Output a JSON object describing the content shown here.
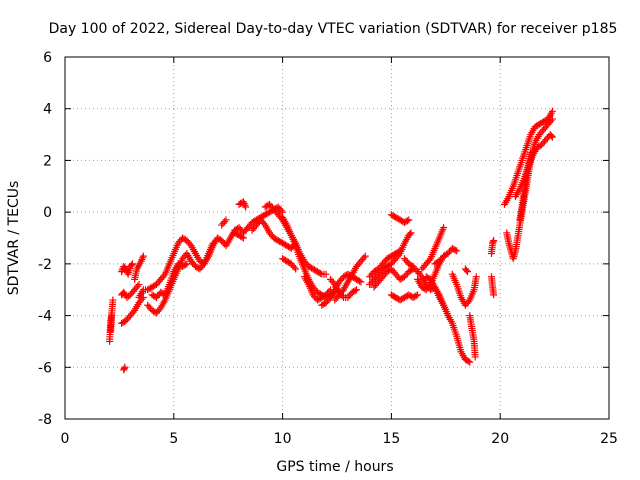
{
  "chart_data": {
    "type": "scatter",
    "title": "Day 100 of 2022, Sidereal Day-to-day VTEC variation (SDTVAR) for receiver p185",
    "xlabel": "GPS time / hours",
    "ylabel": "SDTVAR / TECUs",
    "xlim": [
      0,
      25
    ],
    "ylim": [
      -8,
      6
    ],
    "xticks": [
      "0",
      "5",
      "10",
      "15",
      "20",
      "25"
    ],
    "xtick_values": [
      0,
      5,
      10,
      15,
      20,
      25
    ],
    "yticks": [
      "-8",
      "-6",
      "-4",
      "-2",
      "0",
      "2",
      "4",
      "6"
    ],
    "ytick_values": [
      -8,
      -6,
      -4,
      -2,
      0,
      2,
      4,
      6
    ],
    "grid": true,
    "marker": "+",
    "series_color": "#ff0000",
    "segments": [
      [
        [
          2.05,
          -5.0
        ],
        [
          2.1,
          -4.2
        ],
        [
          2.15,
          -3.9
        ],
        [
          2.2,
          -3.4
        ]
      ],
      [
        [
          2.1,
          -4.6
        ],
        [
          2.15,
          -4.0
        ]
      ],
      [
        [
          2.6,
          -2.3
        ],
        [
          2.7,
          -2.1
        ],
        [
          2.8,
          -2.2
        ],
        [
          2.9,
          -2.4
        ],
        [
          3.0,
          -2.1
        ],
        [
          3.1,
          -2.0
        ]
      ],
      [
        [
          2.6,
          -3.2
        ],
        [
          2.7,
          -3.1
        ],
        [
          2.85,
          -3.3
        ],
        [
          3.0,
          -3.2
        ],
        [
          3.2,
          -3.0
        ],
        [
          3.4,
          -2.8
        ]
      ],
      [
        [
          2.6,
          -4.3
        ],
        [
          2.8,
          -4.2
        ],
        [
          3.0,
          -4.0
        ],
        [
          3.2,
          -3.8
        ],
        [
          3.4,
          -3.5
        ],
        [
          3.6,
          -3.3
        ]
      ],
      [
        [
          2.7,
          -6.1
        ],
        [
          2.75,
          -6.0
        ]
      ],
      [
        [
          3.2,
          -2.6
        ],
        [
          3.3,
          -2.2
        ],
        [
          3.5,
          -1.9
        ],
        [
          3.6,
          -1.7
        ]
      ],
      [
        [
          3.4,
          -3.3
        ],
        [
          3.6,
          -3.0
        ],
        [
          3.8,
          -3.0
        ],
        [
          4.0,
          -2.9
        ],
        [
          4.2,
          -2.8
        ],
        [
          4.4,
          -2.6
        ],
        [
          4.6,
          -2.4
        ],
        [
          4.8,
          -2.0
        ],
        [
          5.0,
          -1.6
        ],
        [
          5.2,
          -1.2
        ],
        [
          5.4,
          -1.0
        ],
        [
          5.6,
          -1.1
        ],
        [
          5.8,
          -1.3
        ],
        [
          6.0,
          -1.6
        ],
        [
          6.2,
          -1.9
        ],
        [
          6.4,
          -2.0
        ],
        [
          6.6,
          -1.7
        ],
        [
          6.8,
          -1.3
        ],
        [
          7.0,
          -1.0
        ],
        [
          7.2,
          -1.1
        ],
        [
          7.4,
          -1.3
        ],
        [
          7.6,
          -1.0
        ],
        [
          7.8,
          -0.7
        ],
        [
          8.0,
          -0.6
        ],
        [
          8.2,
          -0.8
        ],
        [
          8.4,
          -0.6
        ],
        [
          8.6,
          -0.4
        ],
        [
          8.8,
          -0.3
        ],
        [
          9.0,
          -0.2
        ],
        [
          9.2,
          -0.1
        ],
        [
          9.4,
          0.0
        ],
        [
          9.6,
          0.1
        ],
        [
          9.8,
          0.2
        ],
        [
          10.0,
          0.0
        ]
      ],
      [
        [
          3.8,
          -3.6
        ],
        [
          4.0,
          -3.8
        ],
        [
          4.2,
          -3.9
        ],
        [
          4.4,
          -3.7
        ],
        [
          4.6,
          -3.4
        ],
        [
          4.8,
          -3.0
        ],
        [
          5.0,
          -2.6
        ],
        [
          5.2,
          -2.2
        ],
        [
          5.4,
          -1.8
        ],
        [
          5.6,
          -1.6
        ],
        [
          5.8,
          -1.9
        ],
        [
          6.0,
          -2.1
        ],
        [
          6.2,
          -2.2
        ],
        [
          6.4,
          -2.0
        ],
        [
          6.6,
          -1.6
        ],
        [
          6.8,
          -1.2
        ]
      ],
      [
        [
          4.0,
          -3.2
        ],
        [
          4.2,
          -3.3
        ],
        [
          4.4,
          -3.1
        ],
        [
          4.6,
          -3.2
        ],
        [
          4.8,
          -2.8
        ],
        [
          5.0,
          -2.3
        ],
        [
          5.2,
          -2.0
        ],
        [
          5.4,
          -2.1
        ],
        [
          5.6,
          -2.0
        ]
      ],
      [
        [
          7.2,
          -0.5
        ],
        [
          7.4,
          -0.3
        ]
      ],
      [
        [
          8.0,
          0.3
        ],
        [
          8.2,
          0.4
        ],
        [
          8.3,
          0.2
        ]
      ],
      [
        [
          7.8,
          -0.8
        ],
        [
          8.0,
          -0.9
        ],
        [
          8.2,
          -1.0
        ]
      ],
      [
        [
          8.6,
          -0.7
        ],
        [
          8.8,
          -0.5
        ],
        [
          9.0,
          -0.3
        ],
        [
          9.2,
          -0.5
        ],
        [
          9.4,
          -0.8
        ],
        [
          9.6,
          -1.0
        ],
        [
          9.8,
          -1.1
        ],
        [
          10.0,
          -1.2
        ],
        [
          10.2,
          -1.3
        ],
        [
          10.4,
          -1.4
        ],
        [
          10.6,
          -1.2
        ]
      ],
      [
        [
          9.2,
          0.2
        ],
        [
          9.4,
          0.3
        ],
        [
          9.6,
          0.1
        ],
        [
          9.8,
          -0.1
        ],
        [
          10.0,
          -0.3
        ],
        [
          10.2,
          -0.6
        ],
        [
          10.4,
          -0.9
        ],
        [
          10.6,
          -1.2
        ],
        [
          10.8,
          -1.6
        ],
        [
          11.0,
          -1.9
        ],
        [
          11.2,
          -2.1
        ],
        [
          11.4,
          -2.2
        ],
        [
          11.6,
          -2.3
        ],
        [
          11.8,
          -2.4
        ],
        [
          12.0,
          -2.4
        ]
      ],
      [
        [
          10.0,
          -0.2
        ],
        [
          10.2,
          -0.5
        ],
        [
          10.4,
          -0.9
        ],
        [
          10.6,
          -1.3
        ],
        [
          10.8,
          -1.8
        ],
        [
          11.0,
          -2.2
        ],
        [
          11.2,
          -2.6
        ],
        [
          11.4,
          -2.9
        ],
        [
          11.6,
          -3.1
        ],
        [
          11.8,
          -3.2
        ],
        [
          12.0,
          -3.3
        ],
        [
          12.2,
          -3.2
        ],
        [
          12.4,
          -3.1
        ]
      ],
      [
        [
          10.0,
          -1.8
        ],
        [
          10.2,
          -1.9
        ],
        [
          10.4,
          -2.0
        ],
        [
          10.6,
          -2.2
        ]
      ],
      [
        [
          11.0,
          -2.5
        ],
        [
          11.2,
          -2.8
        ],
        [
          11.4,
          -3.2
        ],
        [
          11.6,
          -3.4
        ],
        [
          11.8,
          -3.3
        ],
        [
          12.0,
          -3.2
        ],
        [
          12.2,
          -3.0
        ]
      ],
      [
        [
          11.8,
          -3.6
        ],
        [
          12.0,
          -3.5
        ],
        [
          12.2,
          -3.3
        ],
        [
          12.4,
          -3.0
        ],
        [
          12.6,
          -2.7
        ],
        [
          12.8,
          -2.5
        ],
        [
          13.0,
          -2.4
        ],
        [
          13.2,
          -2.5
        ],
        [
          13.4,
          -2.6
        ],
        [
          13.6,
          -2.7
        ]
      ],
      [
        [
          12.4,
          -3.4
        ],
        [
          12.6,
          -3.2
        ],
        [
          12.8,
          -3.0
        ],
        [
          13.0,
          -2.7
        ],
        [
          13.2,
          -2.4
        ],
        [
          13.4,
          -2.1
        ],
        [
          13.6,
          -1.9
        ],
        [
          13.8,
          -1.7
        ]
      ],
      [
        [
          12.2,
          -2.6
        ],
        [
          12.4,
          -2.8
        ],
        [
          12.6,
          -3.1
        ],
        [
          12.8,
          -3.3
        ],
        [
          13.0,
          -3.3
        ],
        [
          13.2,
          -3.1
        ],
        [
          13.4,
          -3.0
        ]
      ],
      [
        [
          14.0,
          -2.5
        ],
        [
          14.2,
          -2.3
        ],
        [
          14.4,
          -2.2
        ],
        [
          14.6,
          -2.0
        ],
        [
          14.8,
          -1.8
        ],
        [
          15.0,
          -1.7
        ],
        [
          15.2,
          -1.6
        ],
        [
          15.4,
          -1.5
        ]
      ],
      [
        [
          14.0,
          -2.8
        ],
        [
          14.2,
          -2.6
        ],
        [
          14.4,
          -2.4
        ],
        [
          14.6,
          -2.2
        ],
        [
          14.8,
          -2.1
        ],
        [
          15.0,
          -2.0
        ],
        [
          15.2,
          -1.8
        ],
        [
          15.4,
          -1.6
        ],
        [
          15.6,
          -1.2
        ],
        [
          15.8,
          -0.9
        ],
        [
          15.9,
          -0.8
        ]
      ],
      [
        [
          14.2,
          -2.9
        ],
        [
          14.4,
          -2.7
        ],
        [
          14.6,
          -2.5
        ],
        [
          14.8,
          -2.3
        ],
        [
          15.0,
          -2.2
        ],
        [
          15.2,
          -2.4
        ],
        [
          15.4,
          -2.6
        ],
        [
          15.6,
          -2.5
        ],
        [
          15.8,
          -2.3
        ],
        [
          16.0,
          -2.2
        ]
      ],
      [
        [
          15.0,
          -0.1
        ],
        [
          15.2,
          -0.2
        ],
        [
          15.4,
          -0.3
        ],
        [
          15.6,
          -0.4
        ],
        [
          15.8,
          -0.3
        ]
      ],
      [
        [
          15.0,
          -3.2
        ],
        [
          15.2,
          -3.3
        ],
        [
          15.4,
          -3.4
        ],
        [
          15.6,
          -3.3
        ],
        [
          15.8,
          -3.2
        ],
        [
          16.0,
          -3.3
        ],
        [
          16.2,
          -3.2
        ]
      ],
      [
        [
          15.6,
          -1.8
        ],
        [
          15.8,
          -2.0
        ],
        [
          16.0,
          -2.1
        ],
        [
          16.2,
          -2.3
        ],
        [
          16.4,
          -2.5
        ],
        [
          16.6,
          -2.8
        ],
        [
          16.8,
          -3.0
        ],
        [
          17.0,
          -2.9
        ],
        [
          17.2,
          -3.2
        ],
        [
          17.4,
          -3.6
        ],
        [
          17.6,
          -4.0
        ]
      ],
      [
        [
          16.2,
          -2.6
        ],
        [
          16.4,
          -2.9
        ],
        [
          16.6,
          -3.0
        ],
        [
          16.8,
          -2.8
        ],
        [
          17.0,
          -2.4
        ],
        [
          17.2,
          -2.0
        ],
        [
          17.4,
          -1.7
        ]
      ],
      [
        [
          16.4,
          -2.2
        ],
        [
          16.6,
          -2.0
        ],
        [
          16.8,
          -1.8
        ],
        [
          17.0,
          -1.4
        ],
        [
          17.2,
          -1.0
        ],
        [
          17.4,
          -0.6
        ]
      ],
      [
        [
          16.6,
          -2.5
        ],
        [
          16.8,
          -2.6
        ],
        [
          17.0,
          -2.9
        ],
        [
          17.2,
          -3.3
        ],
        [
          17.4,
          -3.6
        ],
        [
          17.6,
          -4.0
        ],
        [
          17.8,
          -4.3
        ],
        [
          18.0,
          -4.8
        ],
        [
          18.2,
          -5.4
        ],
        [
          18.4,
          -5.7
        ],
        [
          18.6,
          -5.8
        ]
      ],
      [
        [
          17.0,
          -2.0
        ],
        [
          17.2,
          -1.9
        ],
        [
          17.4,
          -1.7
        ],
        [
          17.6,
          -1.6
        ],
        [
          17.8,
          -1.4
        ],
        [
          18.0,
          -1.5
        ]
      ],
      [
        [
          17.8,
          -2.4
        ],
        [
          18.0,
          -2.8
        ],
        [
          18.2,
          -3.3
        ],
        [
          18.4,
          -3.6
        ],
        [
          18.6,
          -3.4
        ],
        [
          18.8,
          -3.0
        ],
        [
          18.9,
          -2.5
        ]
      ],
      [
        [
          18.6,
          -4.0
        ],
        [
          18.7,
          -4.5
        ],
        [
          18.8,
          -5.0
        ],
        [
          18.85,
          -5.6
        ]
      ],
      [
        [
          18.4,
          -2.2
        ],
        [
          18.5,
          -2.3
        ]
      ],
      [
        [
          19.6,
          -1.6
        ],
        [
          19.65,
          -1.2
        ],
        [
          19.7,
          -1.1
        ]
      ],
      [
        [
          19.6,
          -2.5
        ],
        [
          19.65,
          -2.9
        ],
        [
          19.7,
          -3.2
        ]
      ],
      [
        [
          20.3,
          -0.8
        ],
        [
          20.4,
          -1.2
        ],
        [
          20.5,
          -1.5
        ],
        [
          20.6,
          -1.8
        ],
        [
          20.7,
          -1.5
        ],
        [
          20.8,
          -1.0
        ],
        [
          20.9,
          -0.5
        ],
        [
          21.0,
          0.0
        ],
        [
          21.1,
          0.5
        ],
        [
          21.2,
          1.0
        ],
        [
          21.3,
          1.5
        ],
        [
          21.4,
          2.0
        ],
        [
          21.5,
          2.4
        ],
        [
          21.6,
          2.7
        ],
        [
          21.8,
          3.0
        ],
        [
          22.0,
          3.2
        ],
        [
          22.2,
          3.4
        ],
        [
          22.4,
          3.6
        ]
      ],
      [
        [
          20.2,
          0.3
        ],
        [
          20.4,
          0.6
        ],
        [
          20.6,
          1.0
        ],
        [
          20.8,
          1.5
        ],
        [
          21.0,
          2.0
        ],
        [
          21.2,
          2.5
        ],
        [
          21.4,
          3.0
        ],
        [
          21.6,
          3.3
        ],
        [
          21.8,
          3.4
        ],
        [
          22.0,
          3.5
        ],
        [
          22.2,
          3.6
        ],
        [
          22.4,
          3.9
        ]
      ],
      [
        [
          20.7,
          0.6
        ],
        [
          20.9,
          0.9
        ],
        [
          21.1,
          1.3
        ],
        [
          21.3,
          1.8
        ],
        [
          21.5,
          2.2
        ],
        [
          21.7,
          2.5
        ],
        [
          21.9,
          2.6
        ],
        [
          22.1,
          2.8
        ],
        [
          22.3,
          3.0
        ],
        [
          22.4,
          2.9
        ]
      ],
      [
        [
          20.9,
          -0.3
        ],
        [
          21.0,
          0.2
        ],
        [
          21.1,
          0.8
        ],
        [
          21.2,
          1.4
        ],
        [
          21.3,
          1.9
        ],
        [
          21.4,
          2.3
        ]
      ]
    ]
  }
}
